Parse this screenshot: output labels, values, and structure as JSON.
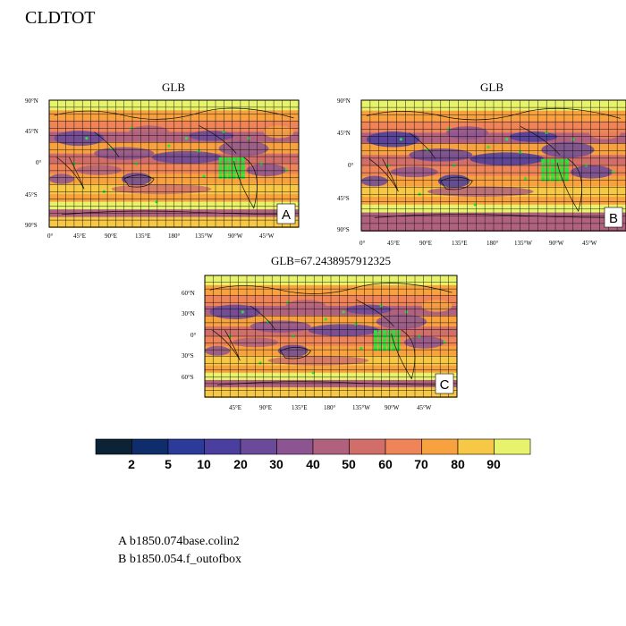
{
  "title": "CLDTOT",
  "panels": [
    {
      "id": "A",
      "title": "GLB",
      "lat_labels": [
        "90°N",
        "45°N",
        "0°",
        "45°S",
        "90°S"
      ],
      "lon_labels": [
        "0°",
        "45°E",
        "90°E",
        "135°E",
        "180°",
        "135°W",
        "90°W",
        "45°W"
      ]
    },
    {
      "id": "B",
      "title": "GLB",
      "lat_labels": [
        "90°N",
        "45°N",
        "0°",
        "45°S",
        "90°S"
      ],
      "lon_labels": [
        "0°",
        "45°E",
        "90°E",
        "135°E",
        "180°",
        "135°W",
        "90°W",
        "45°W"
      ]
    },
    {
      "id": "C",
      "title": "GLB=67.2438957912325",
      "lat_labels": [
        "60°N",
        "30°N",
        "0°",
        "30°S",
        "60°S"
      ],
      "lon_labels": [
        "45°E",
        "90°E",
        "135°E",
        "180°",
        "135°W",
        "90°W",
        "45°W"
      ]
    }
  ],
  "colorbar": {
    "colors": [
      "#0b2334",
      "#0f2d6b",
      "#2c3a9a",
      "#4a3f9e",
      "#6a4a99",
      "#8c5592",
      "#b0617d",
      "#d16e6a",
      "#ee8457",
      "#f8a23f",
      "#f6c846",
      "#e7f36a"
    ],
    "labels": [
      "2",
      "5",
      "10",
      "20",
      "30",
      "40",
      "50",
      "60",
      "70",
      "80",
      "90"
    ]
  },
  "captions": [
    "A  b1850.074base.colin2",
    "B  b1850.054.f_outofbox"
  ]
}
